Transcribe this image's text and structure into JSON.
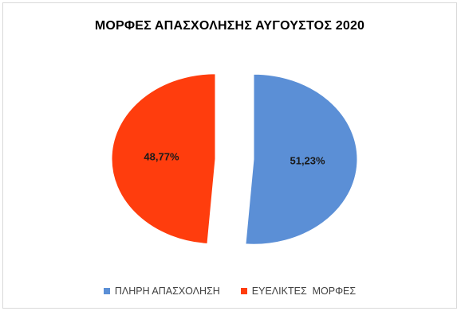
{
  "chart_data": {
    "type": "pie",
    "title": "ΜΟΡΦΕΣ ΑΠΑΣΧΟΛΗΣΗΣ ΑΥΓΟΥΣΤΟΣ 2020",
    "slices": [
      {
        "label": "ΠΛΗΡΗ ΑΠΑΣΧΟΛΗΣΗ",
        "value": 51.23,
        "display": "51,23%",
        "color": "#5b8fd6",
        "exploded": true
      },
      {
        "label": "ΕΥΕΛΙΚΤΕΣ  ΜΟΡΦΕΣ",
        "value": 48.77,
        "display": "48,77%",
        "color": "#ff3d0d",
        "exploded": true
      }
    ],
    "legend_position": "bottom"
  }
}
